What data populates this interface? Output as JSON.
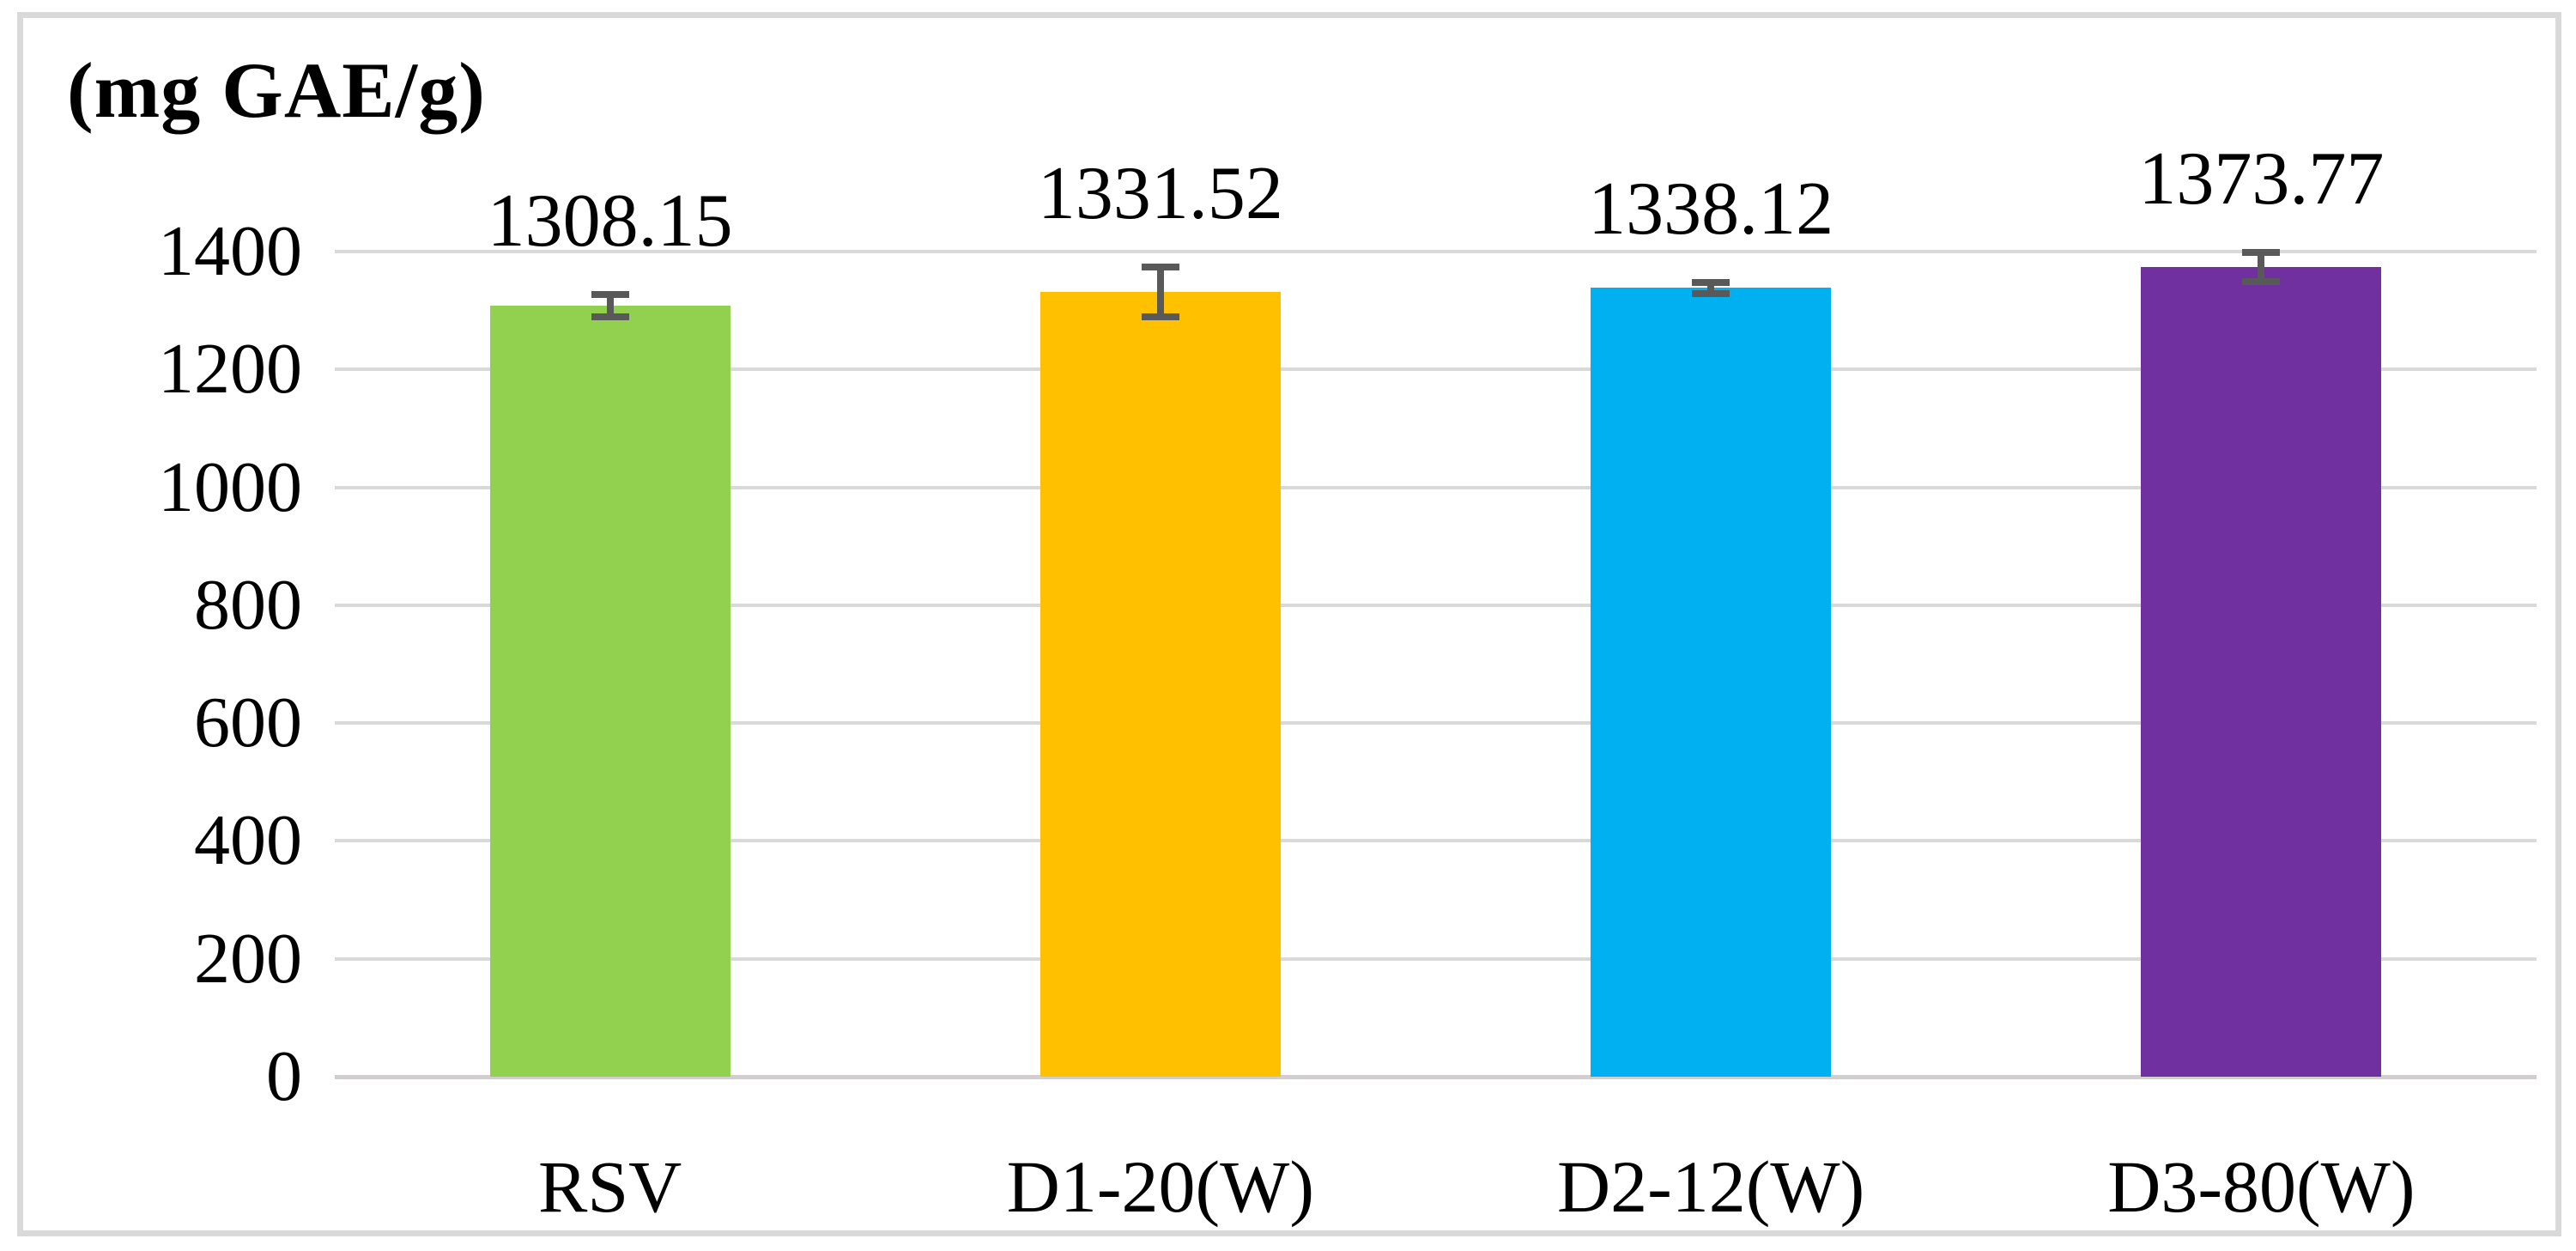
{
  "figure": {
    "unit_label": "(mg GAE/g)"
  },
  "chart_data": {
    "type": "bar",
    "title": "(mg GAE/g)",
    "xlabel": "",
    "ylabel": "(mg GAE/g)",
    "categories": [
      "RSV",
      "D1-20(W)",
      "D2-12(W)",
      "D3-80(W)"
    ],
    "values": [
      1308.15,
      1331.52,
      1338.12,
      1373.77
    ],
    "value_labels": [
      "1308.15",
      "1331.52",
      "1338.12",
      "1373.77"
    ],
    "error_bars": [
      19,
      42,
      9,
      25
    ],
    "bar_colors": [
      "#92D050",
      "#FFC000",
      "#00B0F0",
      "#7030A0"
    ],
    "error_bar_color": "#595959",
    "gridline_color": "#D9D9D9",
    "frame_color": "#D9D9D9",
    "ylim": [
      0,
      1400
    ],
    "yticks": [
      0,
      200,
      400,
      600,
      800,
      1000,
      1200,
      1400
    ],
    "ytick_labels": [
      "0",
      "200",
      "400",
      "600",
      "800",
      "1000",
      "1200",
      "1400"
    ],
    "grid": true,
    "legend": false
  }
}
